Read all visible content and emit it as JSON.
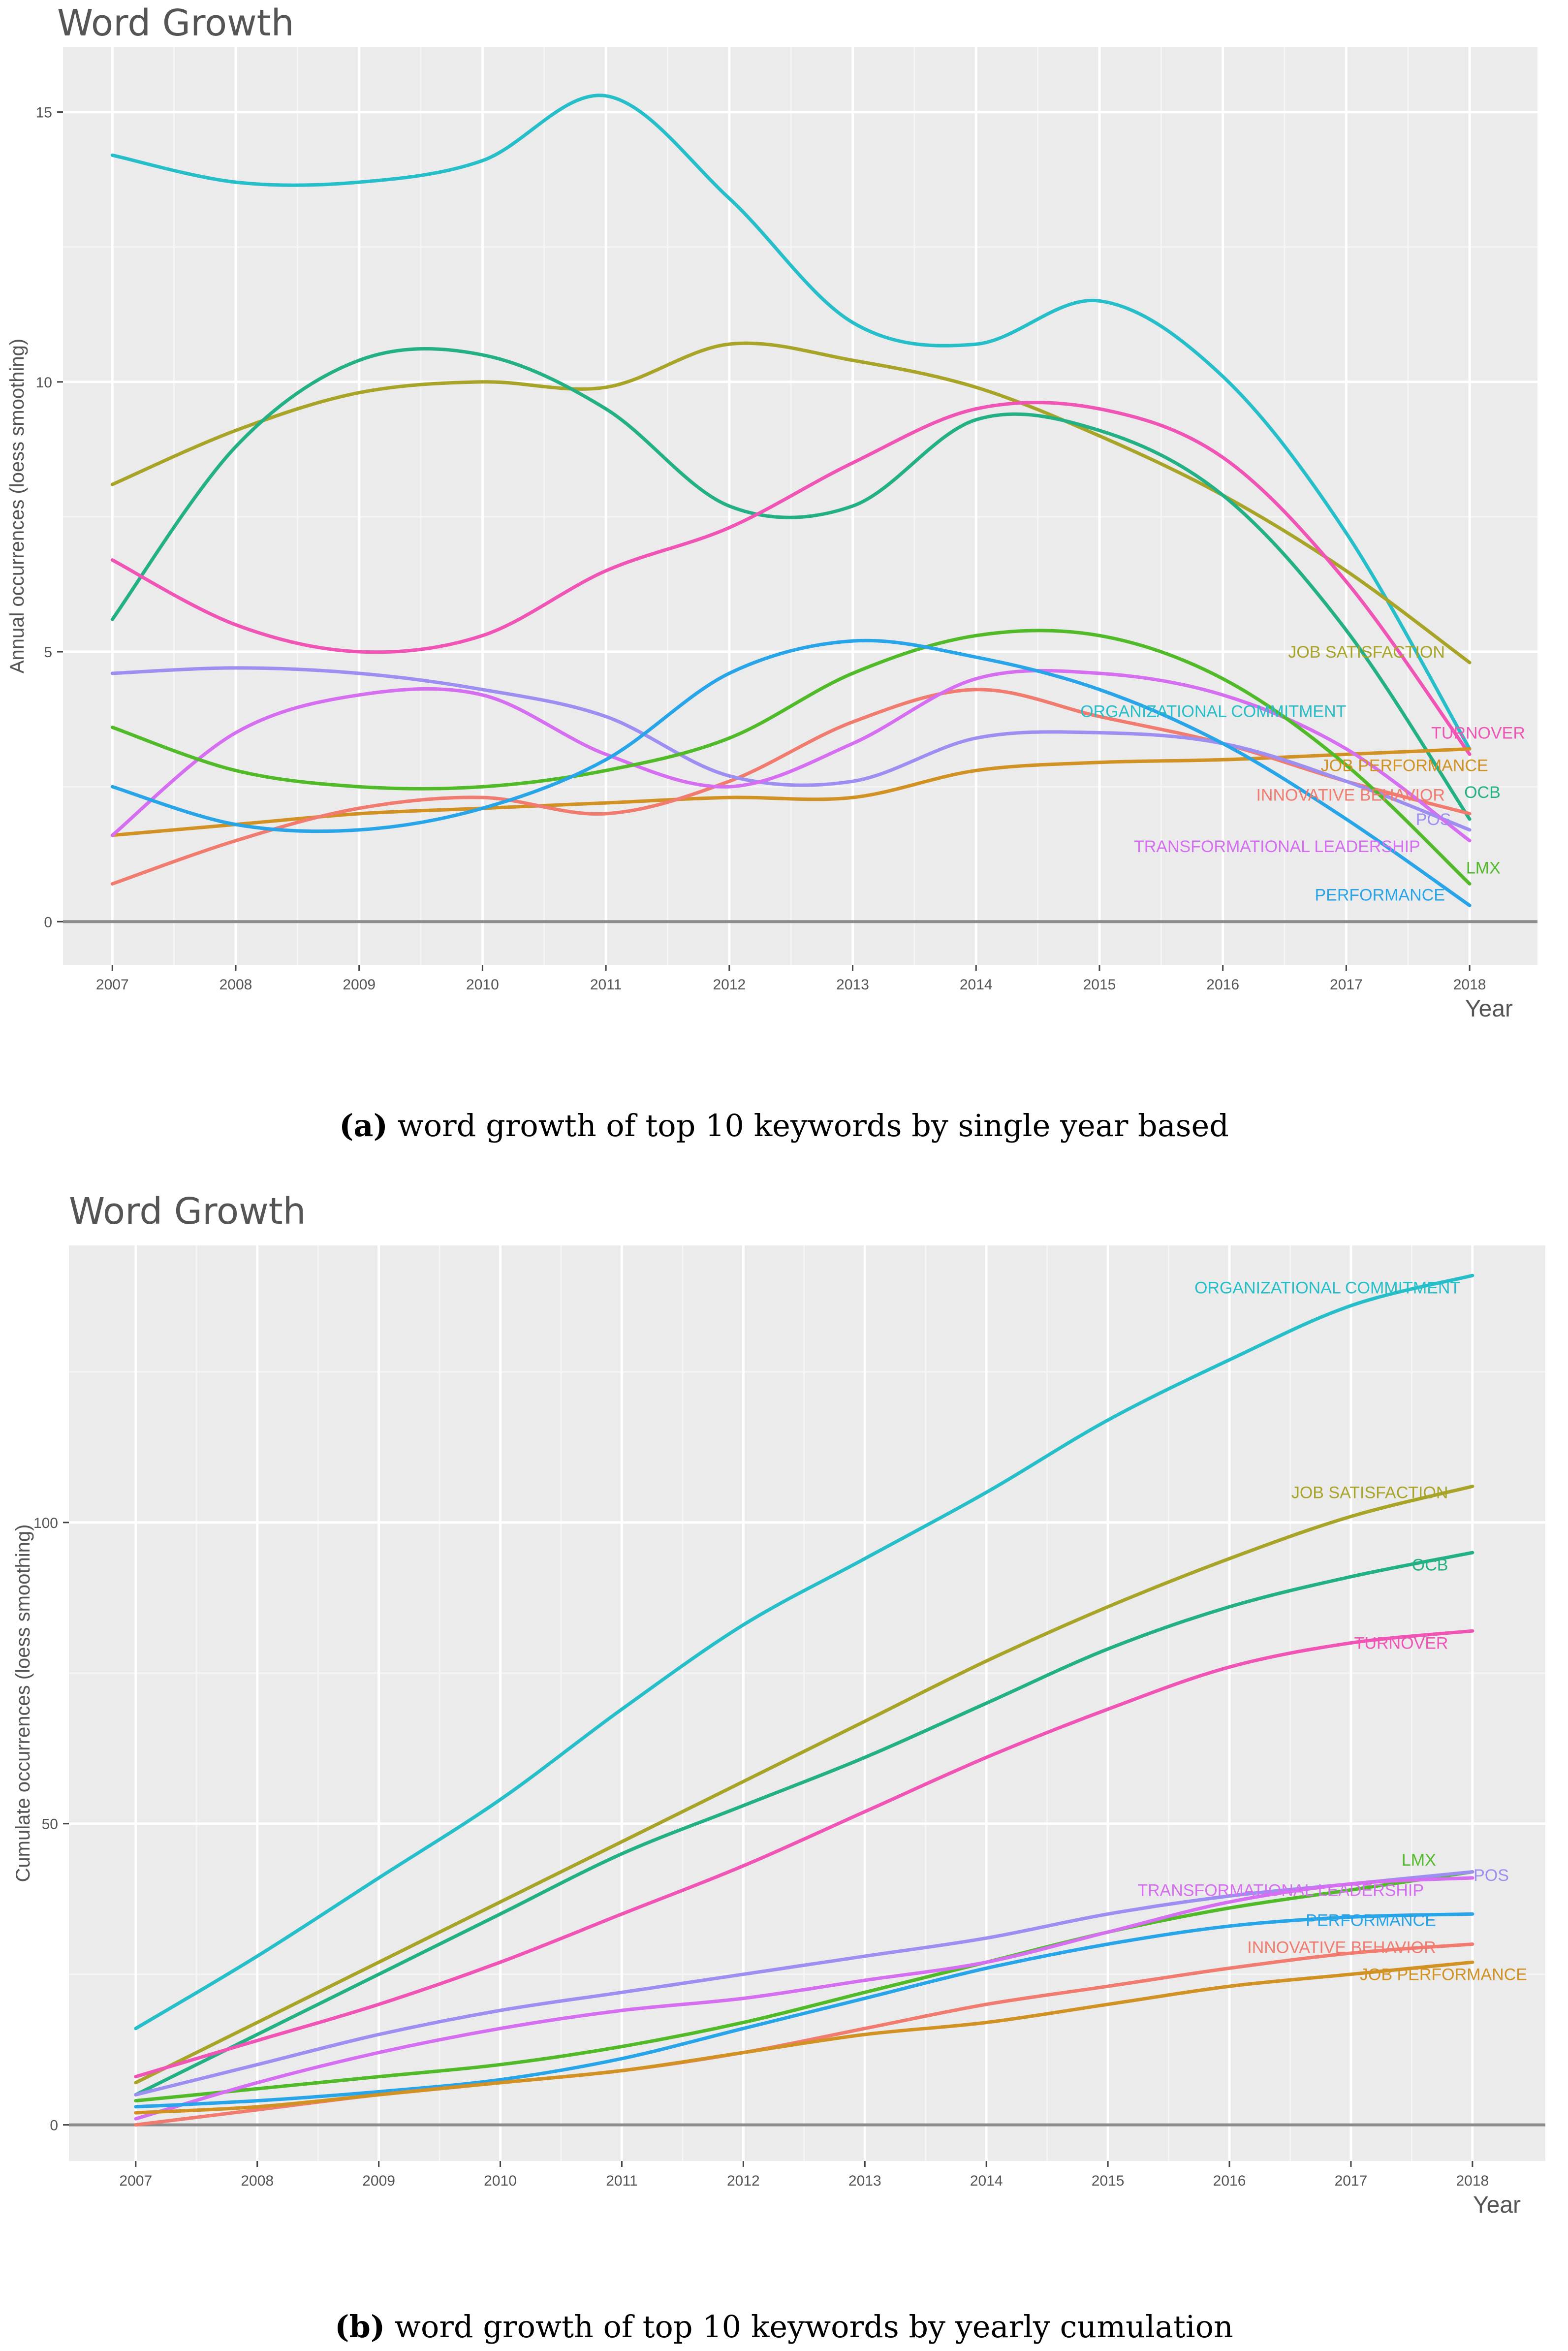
{
  "chart_data": [
    {
      "type": "line",
      "title": "Word Growth",
      "caption_prefix": "(a)",
      "caption_text": " word growth of top 10 keywords by single year based",
      "xlabel": "Year",
      "ylabel": "Annual occurrences (loess smoothing)",
      "x": [
        2007,
        2008,
        2009,
        2010,
        2011,
        2012,
        2013,
        2014,
        2015,
        2016,
        2017,
        2018
      ],
      "xlim": [
        2006.6,
        2018.55
      ],
      "ylim": [
        -0.8,
        16.2
      ],
      "yticks": [
        0,
        5,
        10,
        15
      ],
      "grid": true,
      "series": [
        {
          "name": "ORGANIZATIONAL COMMITMENT",
          "color": "#26bfc9",
          "label_x": 2017.0,
          "label_y": 3.9,
          "values": [
            14.2,
            13.7,
            13.7,
            14.1,
            15.3,
            13.4,
            11.1,
            10.7,
            11.5,
            10.1,
            7.2,
            3.2
          ]
        },
        {
          "name": "JOB SATISFACTION",
          "color": "#a8a428",
          "label_x": 2017.8,
          "label_y": 5.0,
          "values": [
            8.1,
            9.1,
            9.8,
            10.0,
            9.9,
            10.7,
            10.4,
            9.9,
            9.0,
            7.9,
            6.5,
            4.8
          ]
        },
        {
          "name": "OCB",
          "color": "#22b084",
          "label_x": 2018.25,
          "label_y": 2.4,
          "values": [
            5.6,
            8.8,
            10.4,
            10.5,
            9.5,
            7.7,
            7.7,
            9.3,
            9.1,
            7.9,
            5.4,
            1.9
          ]
        },
        {
          "name": "TURNOVER",
          "color": "#f055b6",
          "label_x": 2018.45,
          "label_y": 3.5,
          "values": [
            6.7,
            5.5,
            5.0,
            5.3,
            6.5,
            7.3,
            8.5,
            9.5,
            9.5,
            8.6,
            6.3,
            3.1
          ]
        },
        {
          "name": "JOB PERFORMANCE",
          "color": "#d29223",
          "label_x": 2018.15,
          "label_y": 2.9,
          "values": [
            1.6,
            1.8,
            2.0,
            2.1,
            2.2,
            2.3,
            2.3,
            2.8,
            2.95,
            3.0,
            3.1,
            3.2
          ]
        },
        {
          "name": "INNOVATIVE BEHAVIOR",
          "color": "#f07b6e",
          "label_x": 2017.8,
          "label_y": 2.35,
          "values": [
            0.7,
            1.5,
            2.1,
            2.3,
            2.0,
            2.6,
            3.7,
            4.3,
            3.8,
            3.3,
            2.6,
            2.0
          ]
        },
        {
          "name": "POS",
          "color": "#9d8ff2",
          "label_x": 2017.85,
          "label_y": 1.9,
          "values": [
            4.6,
            4.7,
            4.6,
            4.3,
            3.8,
            2.7,
            2.6,
            3.4,
            3.5,
            3.3,
            2.6,
            1.7
          ]
        },
        {
          "name": "TRANSFORMATIONAL LEADERSHIP",
          "color": "#d56ef0",
          "label_x": 2017.6,
          "label_y": 1.4,
          "values": [
            1.6,
            3.5,
            4.2,
            4.2,
            3.1,
            2.5,
            3.3,
            4.5,
            4.6,
            4.2,
            3.2,
            1.5
          ]
        },
        {
          "name": "LMX",
          "color": "#50ba28",
          "label_x": 2018.25,
          "label_y": 1.0,
          "values": [
            3.6,
            2.8,
            2.5,
            2.5,
            2.8,
            3.4,
            4.6,
            5.3,
            5.3,
            4.5,
            2.9,
            0.7
          ]
        },
        {
          "name": "PERFORMANCE",
          "color": "#28a5e8",
          "label_x": 2017.8,
          "label_y": 0.5,
          "values": [
            2.5,
            1.8,
            1.7,
            2.1,
            3.0,
            4.6,
            5.2,
            4.9,
            4.3,
            3.3,
            1.9,
            0.3
          ]
        }
      ]
    },
    {
      "type": "line",
      "title": "Word Growth",
      "caption_prefix": "(b)",
      "caption_text": " word growth of top 10 keywords by yearly cumulation",
      "xlabel": "Year",
      "ylabel": "Cumulate occurrences (loess smoothing)",
      "x": [
        2007,
        2008,
        2009,
        2010,
        2011,
        2012,
        2013,
        2014,
        2015,
        2016,
        2017,
        2018
      ],
      "xlim": [
        2006.45,
        2018.6
      ],
      "ylim": [
        -6,
        146
      ],
      "yticks": [
        0,
        50,
        100
      ],
      "grid": true,
      "series": [
        {
          "name": "ORGANIZATIONAL COMMITMENT",
          "color": "#26bfc9",
          "label_x": 2017.9,
          "label_y": 139,
          "values": [
            16,
            28,
            41,
            54,
            69,
            83,
            94,
            105,
            117,
            127,
            136,
            141
          ]
        },
        {
          "name": "JOB SATISFACTION",
          "color": "#a8a428",
          "label_x": 2017.8,
          "label_y": 105,
          "values": [
            7,
            17,
            27,
            37,
            47,
            57,
            67,
            77,
            86,
            94,
            101,
            106
          ]
        },
        {
          "name": "OCB",
          "color": "#22b084",
          "label_x": 2017.8,
          "label_y": 93,
          "values": [
            5,
            15,
            25,
            35,
            45,
            53,
            61,
            70,
            79,
            86,
            91,
            95
          ]
        },
        {
          "name": "TURNOVER",
          "color": "#f055b6",
          "label_x": 2017.8,
          "label_y": 80,
          "values": [
            8,
            14,
            20,
            27,
            35,
            43,
            52,
            61,
            69,
            76,
            80,
            82
          ]
        },
        {
          "name": "LMX",
          "color": "#50ba28",
          "label_x": 2017.7,
          "label_y": 44,
          "values": [
            4,
            6,
            8,
            10,
            13,
            17,
            22,
            27,
            32,
            36,
            39,
            42
          ]
        },
        {
          "name": "POS",
          "color": "#9d8ff2",
          "label_x": 2018.3,
          "label_y": 41.5,
          "values": [
            5,
            10,
            15,
            19,
            22,
            25,
            28,
            31,
            35,
            38,
            40,
            42
          ]
        },
        {
          "name": "TRANSFORMATIONAL LEADERSHIP",
          "color": "#d56ef0",
          "label_x": 2017.6,
          "label_y": 39,
          "values": [
            1,
            7,
            12,
            16,
            19,
            21,
            24,
            27,
            32,
            37,
            40,
            41
          ]
        },
        {
          "name": "PERFORMANCE",
          "color": "#28a5e8",
          "label_x": 2017.7,
          "label_y": 34,
          "values": [
            3,
            4,
            5.5,
            7.5,
            11,
            16,
            21,
            26,
            30,
            33,
            34.5,
            35
          ]
        },
        {
          "name": "INNOVATIVE BEHAVIOR",
          "color": "#f07b6e",
          "label_x": 2017.7,
          "label_y": 29.5,
          "values": [
            0,
            2.5,
            5,
            7,
            9,
            12,
            16,
            20,
            23,
            26,
            28.5,
            30
          ]
        },
        {
          "name": "JOB PERFORMANCE",
          "color": "#d29223",
          "label_x": 2018.45,
          "label_y": 25,
          "values": [
            2,
            3,
            5,
            7,
            9,
            12,
            15,
            17,
            20,
            23,
            25,
            27
          ]
        }
      ]
    }
  ]
}
